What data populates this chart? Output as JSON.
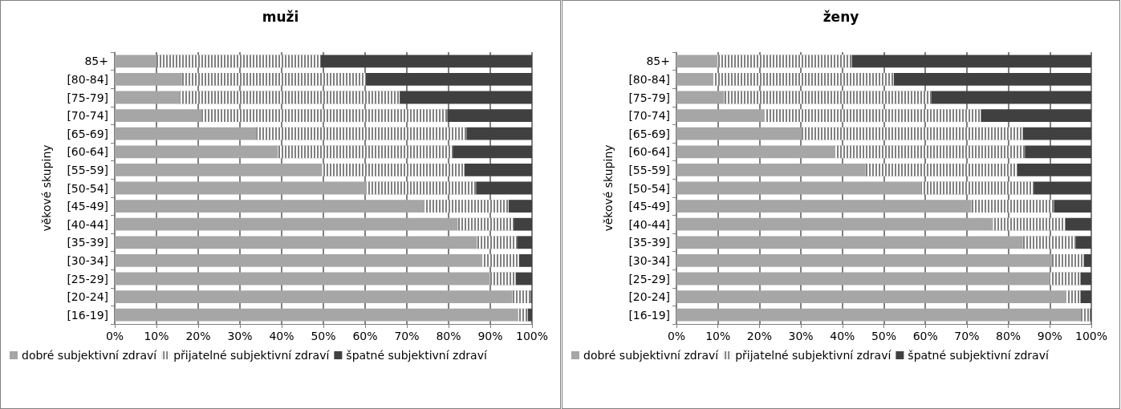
{
  "chart_data": [
    {
      "type": "bar",
      "title": "muži",
      "ylabel": "věkové skupiny",
      "orientation": "horizontal",
      "stacked": true,
      "grid": "x",
      "legend": "bottom",
      "categories": [
        "85+",
        "[80-84]",
        "[75-79]",
        "[70-74]",
        "[65-69]",
        "[60-64]",
        "[55-59]",
        "[50-54]",
        "[45-49]",
        "[40-44]",
        "[35-39]",
        "[30-34]",
        "[25-29]",
        "[20-24]",
        "[16-19]"
      ],
      "xlim": [
        0,
        100
      ],
      "xticks": [
        {
          "value": 0,
          "label": "0%"
        },
        {
          "value": 10,
          "label": "10%"
        },
        {
          "value": 20,
          "label": "20%"
        },
        {
          "value": 30,
          "label": "30%"
        },
        {
          "value": 40,
          "label": "40%"
        },
        {
          "value": 50,
          "label": "50%"
        },
        {
          "value": 60,
          "label": "60%"
        },
        {
          "value": 70,
          "label": "70%"
        },
        {
          "value": 80,
          "label": "80%"
        },
        {
          "value": 90,
          "label": "90%"
        },
        {
          "value": 100,
          "label": "100%"
        }
      ],
      "series": [
        {
          "name": "dobré subjektivní zdraví",
          "color": "#a6a6a6",
          "values": [
            10.0,
            16.1,
            15.6,
            20.8,
            33.9,
            39.1,
            49.7,
            60.4,
            74.1,
            82.2,
            86.8,
            88.1,
            89.9,
            95.3,
            96.7
          ]
        },
        {
          "name": "přijatelné subjektivní zdraví",
          "color": "#808080",
          "values": [
            39.3,
            44.1,
            52.7,
            58.9,
            50.4,
            41.9,
            34.1,
            26.2,
            20.3,
            13.4,
            9.6,
            8.8,
            6.2,
            4.4,
            2.3
          ]
        },
        {
          "name": "špatné subjektivní zdraví",
          "color": "#404040",
          "values": [
            50.7,
            39.8,
            31.7,
            20.3,
            15.7,
            19.0,
            16.2,
            13.4,
            5.6,
            4.4,
            3.6,
            3.1,
            3.9,
            0.3,
            1.0
          ]
        }
      ]
    },
    {
      "type": "bar",
      "title": "ženy",
      "ylabel": "věkové skupiny",
      "orientation": "horizontal",
      "stacked": true,
      "grid": "x",
      "legend": "bottom",
      "categories": [
        "85+",
        "[80-84]",
        "[75-79]",
        "[70-74]",
        "[65-69]",
        "[60-64]",
        "[55-59]",
        "[50-54]",
        "[45-49]",
        "[40-44]",
        "[35-39]",
        "[30-34]",
        "[25-29]",
        "[20-24]",
        "[16-19]"
      ],
      "xlim": [
        0,
        100
      ],
      "xticks": [
        {
          "value": 0,
          "label": "0%"
        },
        {
          "value": 10,
          "label": "10%"
        },
        {
          "value": 20,
          "label": "20%"
        },
        {
          "value": 30,
          "label": "30%"
        },
        {
          "value": 40,
          "label": "40%"
        },
        {
          "value": 50,
          "label": "50%"
        },
        {
          "value": 60,
          "label": "60%"
        },
        {
          "value": 70,
          "label": "70%"
        },
        {
          "value": 80,
          "label": "80%"
        },
        {
          "value": 90,
          "label": "90%"
        },
        {
          "value": 100,
          "label": "100%"
        }
      ],
      "series": [
        {
          "name": "dobré subjektivní zdraví",
          "color": "#a6a6a6",
          "values": [
            9.9,
            8.8,
            11.5,
            21.2,
            30.2,
            38.3,
            45.6,
            59.0,
            71.1,
            76.3,
            83.5,
            90.5,
            89.9,
            93.9,
            97.5
          ]
        },
        {
          "name": "přijatelné subjektivní zdraví",
          "color": "#808080",
          "values": [
            32.4,
            43.6,
            49.9,
            52.2,
            53.3,
            45.7,
            36.6,
            27.1,
            19.9,
            17.5,
            12.7,
            7.7,
            7.5,
            3.5,
            2.2
          ]
        },
        {
          "name": "špatné subjektivní zdraví",
          "color": "#404040",
          "values": [
            57.7,
            47.6,
            38.6,
            26.6,
            16.5,
            16.0,
            17.8,
            13.9,
            9.0,
            6.2,
            3.8,
            1.8,
            2.6,
            2.6,
            0.3
          ]
        }
      ]
    }
  ]
}
